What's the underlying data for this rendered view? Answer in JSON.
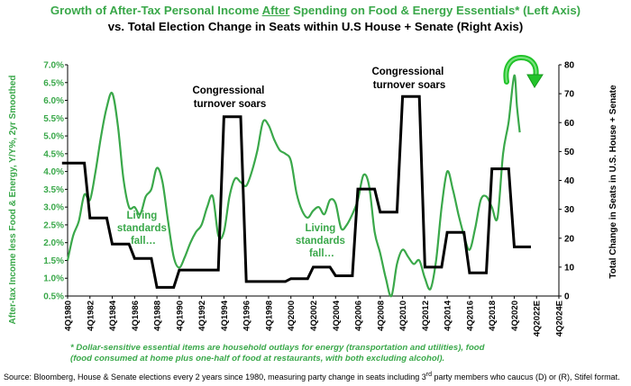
{
  "colors": {
    "green": "#3aa84a",
    "black": "#000000",
    "arrow_green": "#22c32a"
  },
  "title": {
    "line1_pre": "Growth of After-Tax Personal Income ",
    "line1_underlined": "After",
    "line1_post": " Spending on Food & Energy Essentials* (Left Axis)",
    "line2": "vs. Total Election Change in Seats within U.S House + Senate (Right Axis)"
  },
  "annotations": {
    "congress1": [
      "Congressional",
      "turnover soars"
    ],
    "congress2": [
      "Congressional",
      "turnover soars"
    ],
    "living1": [
      "Living",
      "standards",
      "fall…"
    ],
    "living2": [
      "Living",
      "standards",
      "fall…"
    ]
  },
  "icons": {
    "arrow": "curved-arrow-down-icon"
  },
  "footnote": {
    "line1": "* Dollar-sensitive essential items are household outlays for energy (transportation and utilities), food",
    "line2": "(food consumed at home plus one-half of food at restaurants, with both excluding alcohol)."
  },
  "source_pre": "Source: Bloomberg, House & Senate elections every 2 years since 1980, measuring party change in seats including 3",
  "source_sup": "rd",
  "source_post": " party members who caucus (D) or (R), Stifel format.",
  "chart_data": {
    "type": "line",
    "ylabel": "After-tax Income less Food & Energy, Y/Y%, 2yr Smoothed",
    "y2label": "Total Change in Seats in U.S. House + Senate",
    "ylim": [
      0.5,
      7.0
    ],
    "y2lim": [
      0,
      80
    ],
    "yticks": [
      "0.5%",
      "1.0%",
      "1.5%",
      "2.0%",
      "2.5%",
      "3.0%",
      "3.5%",
      "4.0%",
      "4.5%",
      "5.0%",
      "5.5%",
      "6.0%",
      "6.5%",
      "7.0%"
    ],
    "y2ticks": [
      "0",
      "10",
      "20",
      "30",
      "40",
      "50",
      "60",
      "70",
      "80"
    ],
    "xticks": [
      "4Q1980",
      "4Q1982",
      "4Q1984",
      "4Q1986",
      "4Q1988",
      "4Q1990",
      "4Q1992",
      "4Q1994",
      "4Q1996",
      "4Q1998",
      "4Q2000",
      "4Q2002",
      "4Q2004",
      "4Q2006",
      "4Q2008",
      "4Q2010",
      "4Q2012",
      "4Q2014",
      "4Q2016",
      "4Q2018",
      "4Q2020",
      "4Q2022E",
      "4Q2024E"
    ],
    "series": [
      {
        "axis": "left",
        "style": "line",
        "x": [
          1980.75,
          1981.25,
          1981.75,
          1982.25,
          1982.75,
          1983.25,
          1983.75,
          1984.25,
          1984.75,
          1985.25,
          1985.75,
          1986.25,
          1986.75,
          1987.25,
          1987.75,
          1988.25,
          1988.75,
          1989.25,
          1989.75,
          1990.25,
          1990.75,
          1991.25,
          1991.75,
          1992.25,
          1992.75,
          1993.25,
          1993.75,
          1994.25,
          1994.75,
          1995.25,
          1995.75,
          1996.25,
          1996.75,
          1997.25,
          1997.75,
          1998.25,
          1998.75,
          1999.25,
          1999.75,
          2000.25,
          2000.75,
          2001.25,
          2001.75,
          2002.25,
          2002.75,
          2003.25,
          2003.75,
          2004.25,
          2004.75,
          2005.25,
          2005.75,
          2006.25,
          2006.75,
          2007.25,
          2007.75,
          2008.25,
          2008.75,
          2009.25,
          2009.75,
          2010.25,
          2010.75,
          2011.25,
          2011.75,
          2012.25,
          2012.75,
          2013.25,
          2013.75,
          2014.25,
          2014.75,
          2015.25,
          2015.75,
          2016.25,
          2016.75,
          2017.25,
          2017.75,
          2018.25,
          2018.75,
          2019.25,
          2019.75,
          2020.25,
          2020.75,
          2021.0,
          2021.25
        ],
        "values": [
          1.5,
          2.2,
          2.6,
          3.35,
          3.2,
          4.0,
          5.0,
          5.8,
          6.2,
          5.3,
          3.8,
          3.0,
          3.0,
          2.8,
          3.3,
          3.5,
          4.1,
          3.7,
          2.6,
          1.6,
          1.3,
          1.6,
          2.0,
          2.3,
          2.5,
          3.0,
          3.3,
          2.2,
          2.3,
          3.3,
          3.8,
          3.7,
          3.6,
          4.0,
          4.6,
          5.4,
          5.3,
          4.9,
          4.6,
          4.5,
          4.3,
          3.4,
          2.9,
          2.7,
          2.9,
          3.0,
          2.8,
          3.2,
          3.1,
          2.4,
          2.5,
          2.8,
          3.2,
          3.9,
          3.6,
          2.3,
          1.7,
          1.0,
          0.5,
          1.4,
          1.8,
          1.6,
          1.4,
          1.5,
          1.0,
          0.7,
          1.5,
          3.0,
          4.0,
          3.5,
          2.8,
          2.2,
          1.8,
          2.4,
          3.2,
          3.3,
          3.0,
          2.7,
          4.5,
          5.4,
          6.7,
          5.8,
          5.1
        ]
      },
      {
        "axis": "right",
        "style": "step",
        "x": [
          1980.25,
          1982.25,
          1982.75,
          1984.25,
          1984.75,
          1986.25,
          1986.75,
          1988.25,
          1988.75,
          1990.25,
          1990.75,
          1992.25,
          1992.75,
          1994.25,
          1994.75,
          1996.25,
          1996.75,
          1998.25,
          1998.75,
          2000.25,
          2000.75,
          2002.25,
          2002.75,
          2004.25,
          2004.75,
          2006.25,
          2006.75,
          2008.25,
          2008.75,
          2010.25,
          2010.75,
          2012.25,
          2012.75,
          2014.25,
          2014.75,
          2016.25,
          2016.75,
          2018.25,
          2018.75,
          2020.25,
          2020.75,
          2022.25
        ],
        "values": [
          46,
          46,
          27,
          27,
          18,
          18,
          13,
          13,
          3,
          3,
          9,
          9,
          9,
          9,
          62,
          62,
          5,
          5,
          5,
          5,
          6,
          6,
          10,
          10,
          7,
          7,
          37,
          37,
          29,
          29,
          69,
          69,
          10,
          10,
          22,
          22,
          8,
          8,
          44,
          44,
          17,
          17
        ]
      }
    ]
  }
}
